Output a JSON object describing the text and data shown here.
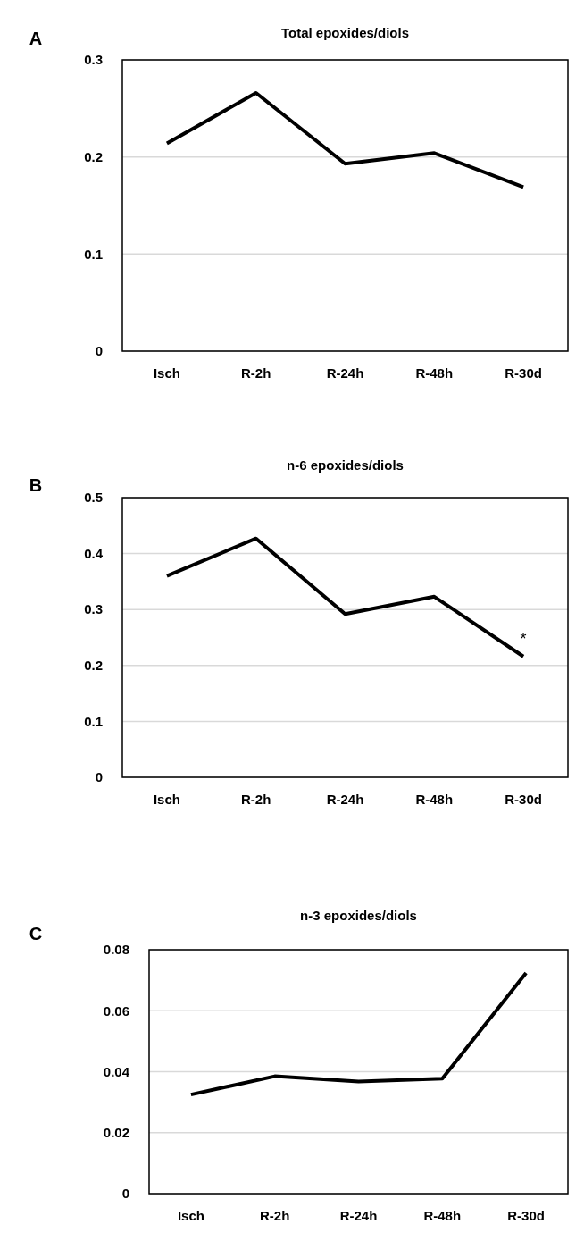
{
  "chart_data": [
    {
      "type": "line",
      "title": "Total epoxides/diols",
      "annotations": [
        "A"
      ],
      "categories": [
        "Isch",
        "R-2h",
        "R-24h",
        "R-48h",
        "R-30d"
      ],
      "series": [
        {
          "color": "#000000",
          "values": [
            0.214,
            0.266,
            0.193,
            0.204,
            0.169
          ]
        }
      ],
      "ylim": [
        0,
        0.3
      ],
      "yticks": [
        0,
        0.1,
        0.2,
        0.3
      ],
      "grid": "y",
      "marker": "none",
      "line_style": "solid"
    },
    {
      "type": "line",
      "title": "n-6 epoxides/diols",
      "annotations": [
        "B",
        "*"
      ],
      "categories": [
        "Isch",
        "R-2h",
        "R-24h",
        "R-48h",
        "R-30d"
      ],
      "series": [
        {
          "color": "#000000",
          "values": [
            0.36,
            0.427,
            0.292,
            0.323,
            0.216
          ]
        }
      ],
      "ylim": [
        0,
        0.5
      ],
      "yticks": [
        0,
        0.1,
        0.2,
        0.3,
        0.4,
        0.5
      ],
      "grid": "y",
      "marker": "none",
      "line_style": "solid"
    },
    {
      "type": "line",
      "title": "n-3 epoxides/diols",
      "annotations": [
        "C"
      ],
      "categories": [
        "Isch",
        "R-2h",
        "R-24h",
        "R-48h",
        "R-30d"
      ],
      "series": [
        {
          "color": "#000000",
          "values": [
            0.0325,
            0.0385,
            0.0368,
            0.0377,
            0.0724
          ]
        }
      ],
      "ylim": [
        0,
        0.08
      ],
      "yticks": [
        0,
        0.02,
        0.04,
        0.06,
        0.08
      ],
      "grid": "y",
      "marker": "none",
      "line_style": "solid"
    }
  ]
}
